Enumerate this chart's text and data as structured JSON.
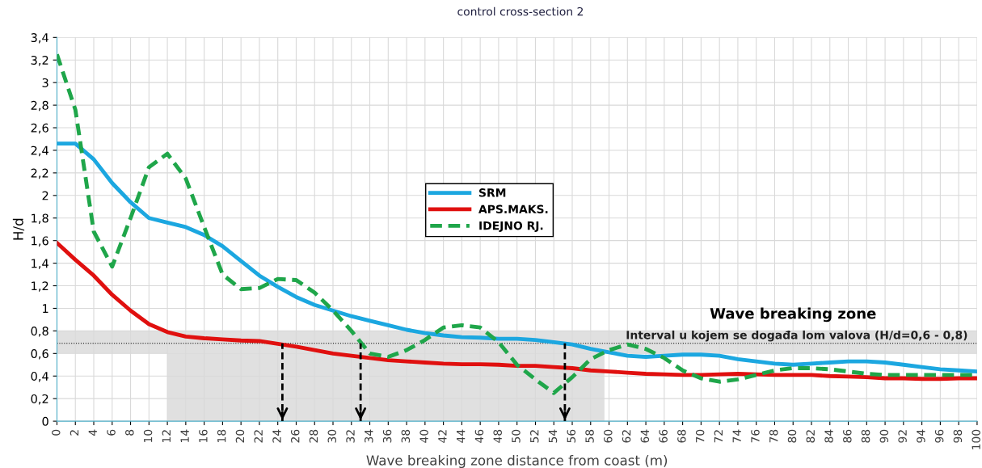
{
  "chart_data": {
    "type": "line",
    "title": "control cross-section 2",
    "xlabel": "Wave breaking zone distance from coast (m)",
    "ylabel": "H/d",
    "x": [
      0,
      2,
      4,
      6,
      8,
      10,
      12,
      14,
      16,
      18,
      20,
      22,
      24,
      26,
      28,
      30,
      32,
      34,
      36,
      38,
      40,
      42,
      44,
      46,
      48,
      50,
      52,
      54,
      56,
      58,
      60,
      62,
      64,
      66,
      68,
      70,
      72,
      74,
      76,
      78,
      80,
      82,
      84,
      86,
      88,
      90,
      92,
      94,
      96,
      98,
      100
    ],
    "series": [
      {
        "name": "SRM",
        "color": "#1ca7e0",
        "line_style": "solid",
        "values": [
          2.46,
          2.46,
          2.32,
          2.11,
          1.94,
          1.8,
          1.76,
          1.72,
          1.65,
          1.55,
          1.42,
          1.29,
          1.19,
          1.1,
          1.03,
          0.98,
          0.93,
          0.89,
          0.85,
          0.81,
          0.78,
          0.76,
          0.745,
          0.74,
          0.73,
          0.73,
          0.72,
          0.7,
          0.68,
          0.64,
          0.61,
          0.58,
          0.57,
          0.58,
          0.59,
          0.59,
          0.58,
          0.55,
          0.53,
          0.51,
          0.5,
          0.51,
          0.52,
          0.53,
          0.53,
          0.52,
          0.5,
          0.48,
          0.46,
          0.45,
          0.44
        ]
      },
      {
        "name": "APS.MAKS.",
        "color": "#e0100f",
        "line_style": "solid",
        "values": [
          1.58,
          1.43,
          1.29,
          1.12,
          0.98,
          0.86,
          0.79,
          0.75,
          0.735,
          0.725,
          0.715,
          0.71,
          0.685,
          0.66,
          0.63,
          0.6,
          0.58,
          0.56,
          0.54,
          0.53,
          0.52,
          0.51,
          0.505,
          0.505,
          0.5,
          0.49,
          0.49,
          0.48,
          0.47,
          0.45,
          0.44,
          0.43,
          0.42,
          0.415,
          0.41,
          0.41,
          0.415,
          0.42,
          0.415,
          0.41,
          0.41,
          0.41,
          0.4,
          0.395,
          0.39,
          0.38,
          0.38,
          0.375,
          0.375,
          0.38,
          0.38
        ]
      },
      {
        "name": "IDEJNO RJ.",
        "color": "#1fa64a",
        "line_style": "dashed",
        "values": [
          3.25,
          2.76,
          1.68,
          1.37,
          1.8,
          2.25,
          2.37,
          2.15,
          1.72,
          1.3,
          1.17,
          1.18,
          1.26,
          1.25,
          1.14,
          0.98,
          0.8,
          0.6,
          0.57,
          0.63,
          0.72,
          0.83,
          0.85,
          0.83,
          0.7,
          0.5,
          0.37,
          0.25,
          0.39,
          0.55,
          0.63,
          0.68,
          0.64,
          0.56,
          0.45,
          0.38,
          0.35,
          0.37,
          0.41,
          0.45,
          0.47,
          0.47,
          0.46,
          0.44,
          0.42,
          0.41,
          0.41,
          0.41,
          0.41,
          0.41,
          0.41
        ]
      }
    ],
    "xlim": [
      0,
      100
    ],
    "xticks": [
      0,
      2,
      4,
      6,
      8,
      10,
      12,
      14,
      16,
      18,
      20,
      22,
      24,
      26,
      28,
      30,
      32,
      34,
      36,
      38,
      40,
      42,
      44,
      46,
      48,
      50,
      52,
      54,
      56,
      58,
      60,
      62,
      64,
      66,
      68,
      70,
      72,
      74,
      76,
      78,
      80,
      82,
      84,
      86,
      88,
      90,
      92,
      94,
      96,
      98,
      100
    ],
    "ylim": [
      0,
      3.4
    ],
    "yticks": [
      0,
      {
        "value": 0.2,
        "label": "0,2"
      },
      {
        "value": 0.4,
        "label": "0,4"
      },
      {
        "value": 0.6,
        "label": "0,6"
      },
      {
        "value": 0.8,
        "label": "0,8"
      },
      1,
      {
        "value": 1.2,
        "label": "1,2"
      },
      {
        "value": 1.4,
        "label": "1,4"
      },
      {
        "value": 1.6,
        "label": "1,6"
      },
      {
        "value": 1.8,
        "label": "1,8"
      },
      2,
      {
        "value": 2.2,
        "label": "2,2"
      },
      {
        "value": 2.4,
        "label": "2,4"
      },
      {
        "value": 2.6,
        "label": "2,6"
      },
      {
        "value": 2.8,
        "label": "2,8"
      },
      3,
      {
        "value": 3.2,
        "label": "3,2"
      },
      {
        "value": 3.4,
        "label": "3,4"
      }
    ],
    "bands": [
      {
        "axis": "y",
        "from": 0.6,
        "to": 0.8,
        "label": "Interval u kojem se događa lom valova (H/d=0,6 - 0,8)",
        "color": "#e0e0e0"
      },
      {
        "axis": "x",
        "from": 12,
        "to": 59.5,
        "color": "#e0e0e0"
      }
    ],
    "ref_lines": [
      {
        "axis": "y",
        "value": 0.69,
        "color": "#000000",
        "line_style": "dotted"
      },
      {
        "axis": "x",
        "value": 24.5,
        "color": "#000000",
        "line_style": "dashed"
      },
      {
        "axis": "x",
        "value": 33,
        "color": "#000000",
        "line_style": "dashed"
      },
      {
        "axis": "x",
        "value": 55.2,
        "color": "#000000",
        "line_style": "dashed"
      }
    ],
    "annotations": [
      {
        "text": "Wave breaking zone",
        "x": 80,
        "y": 0.8
      }
    ],
    "grid": true,
    "legend": "center",
    "marker": "none"
  }
}
